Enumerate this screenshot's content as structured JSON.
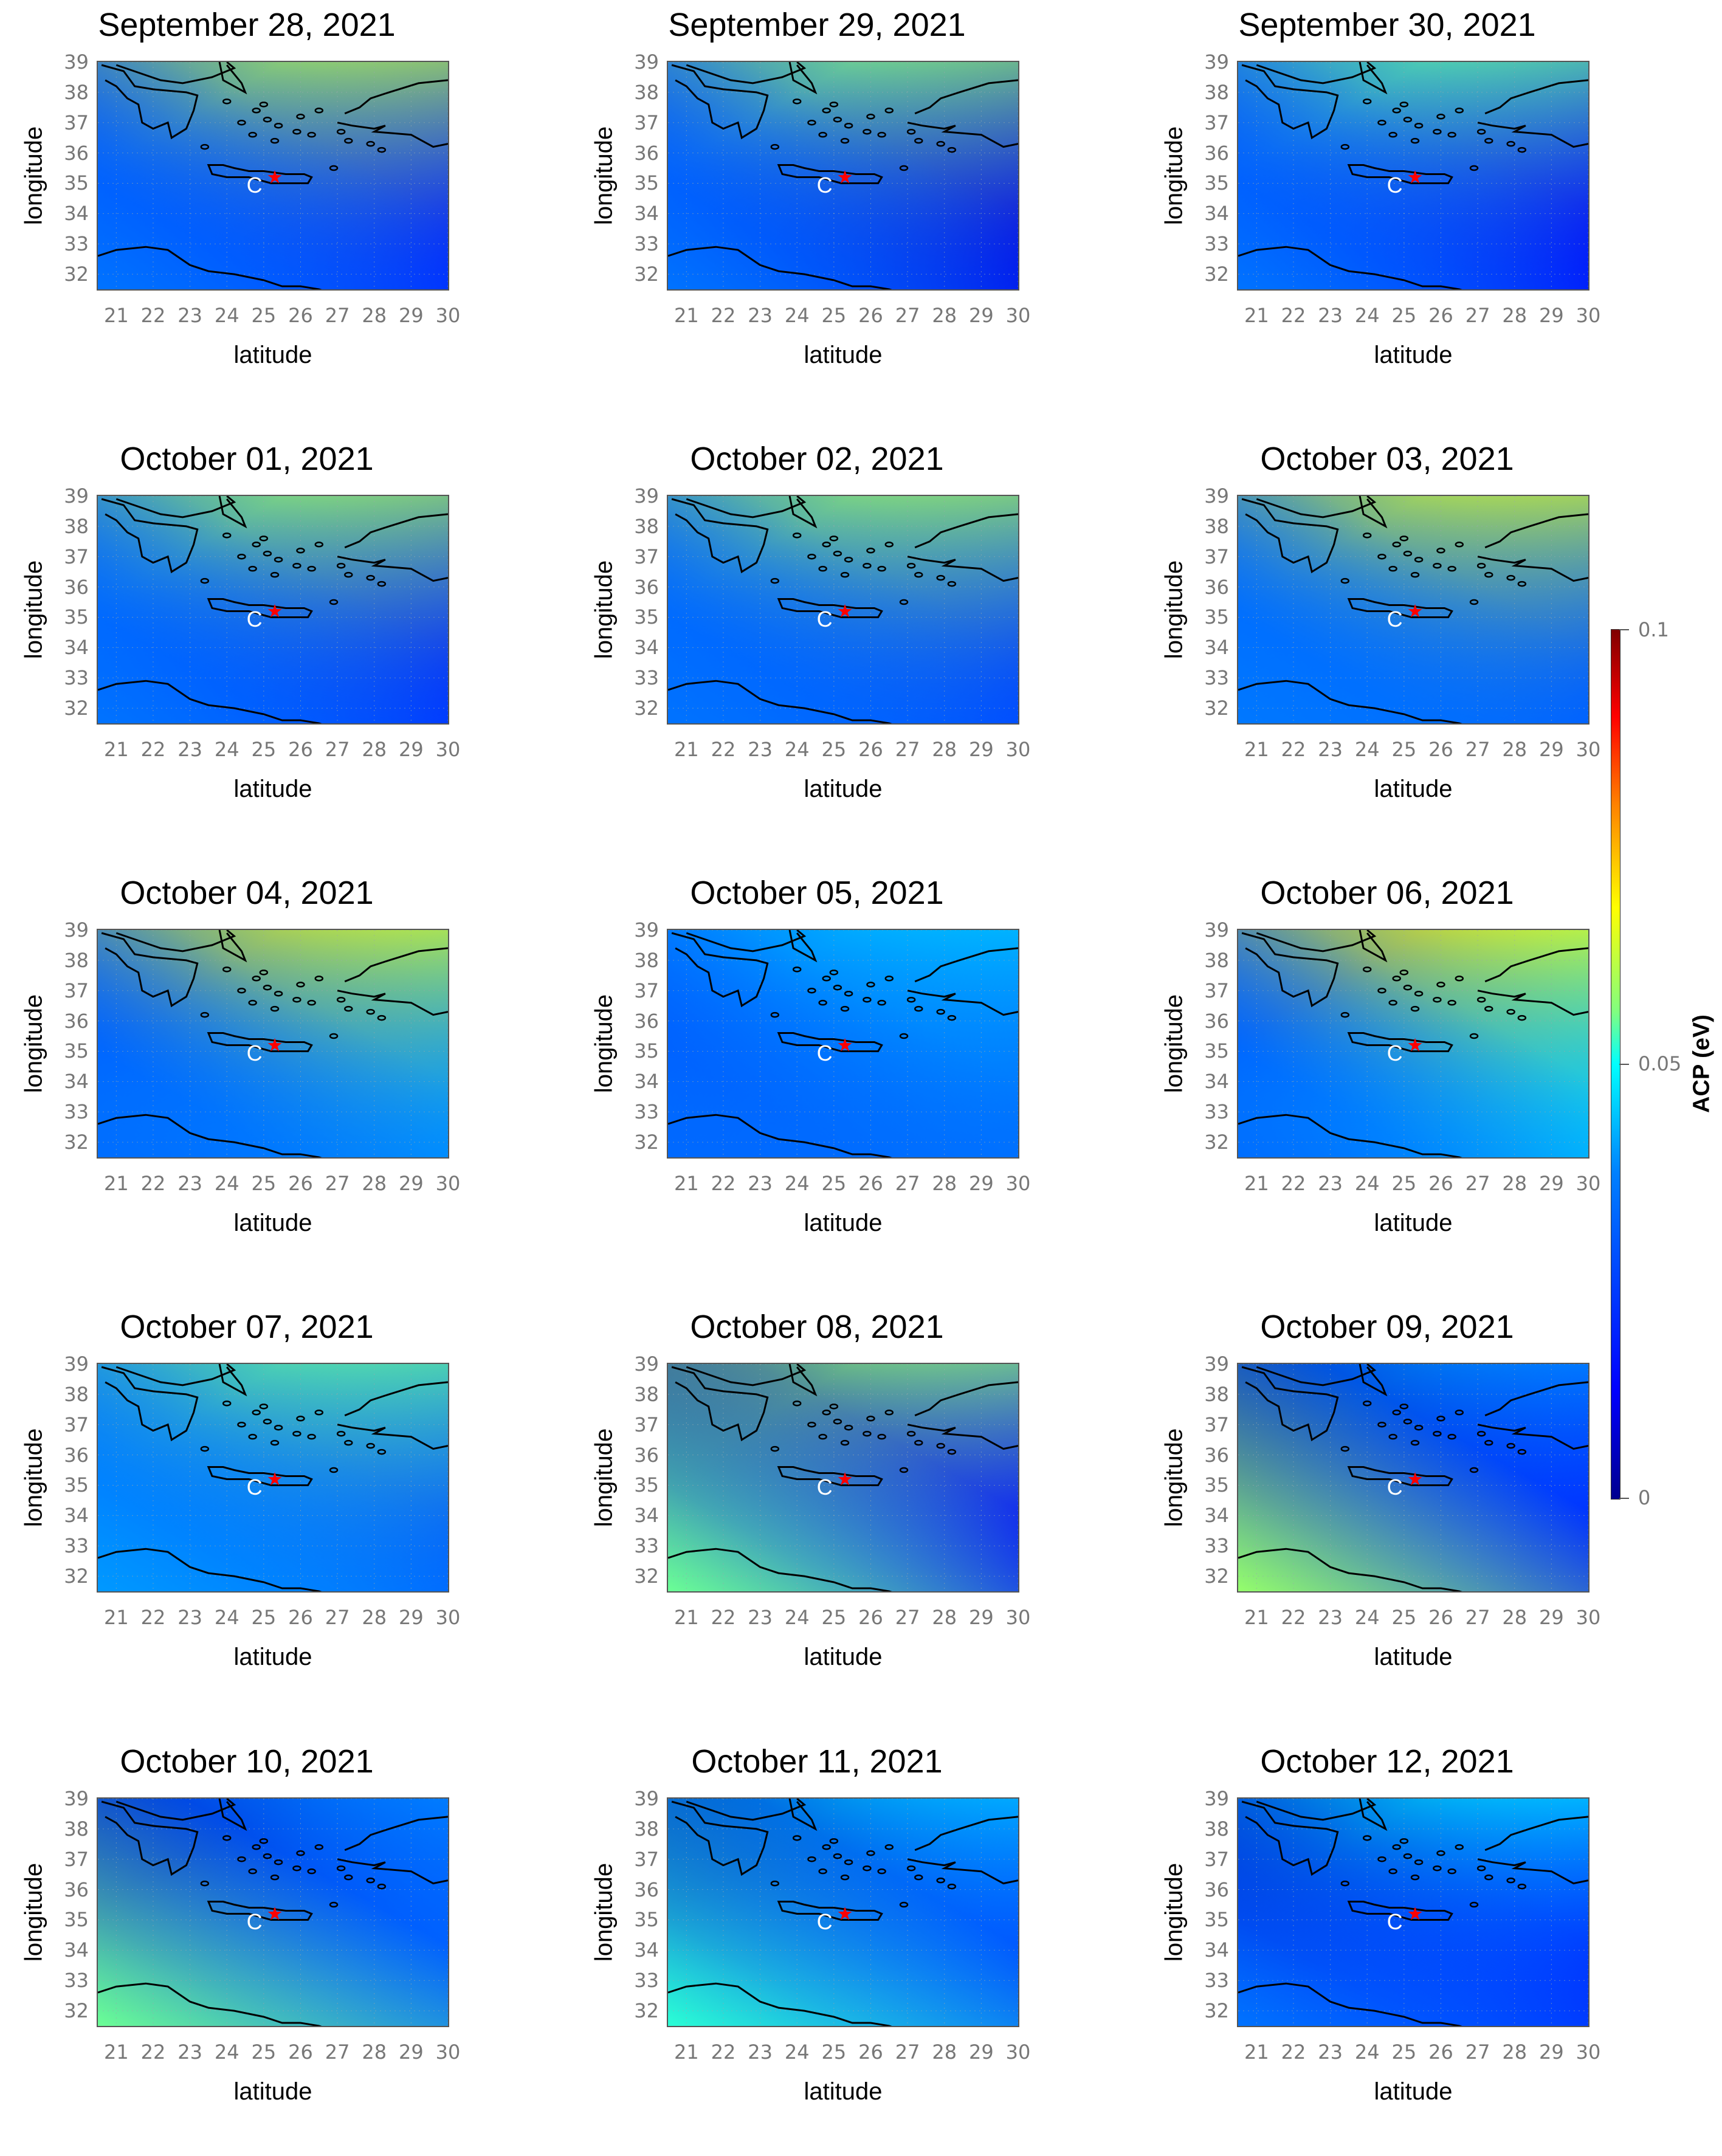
{
  "chart_data": {
    "type": "heatmap",
    "grid_layout": {
      "rows": 5,
      "cols": 3
    },
    "xlabel": "latitude",
    "ylabel": "longitude",
    "xlim": [
      20.5,
      30
    ],
    "ylim": [
      31.5,
      39
    ],
    "x_ticks": [
      "21",
      "22",
      "23",
      "24",
      "25",
      "26",
      "27",
      "28",
      "29",
      "30"
    ],
    "y_ticks": [
      "39",
      "38",
      "37",
      "36",
      "35",
      "34",
      "33",
      "32"
    ],
    "grid": true,
    "colorbar": {
      "title": "ACP (eV)",
      "range": [
        0,
        0.1
      ],
      "ticks": [
        "0.1",
        "0.05",
        "0"
      ],
      "colors": [
        "#00008f",
        "#0000ff",
        "#0080ff",
        "#00ffff",
        "#80ff80",
        "#ffff00",
        "#ff8000",
        "#ff0000",
        "#800000"
      ]
    },
    "markers": {
      "epicenter": {
        "symbol": "★",
        "color": "#ff0000",
        "x": 25.3,
        "y": 35.2
      },
      "point_c": {
        "label": "C",
        "color": "#ffffff",
        "x": 24.75,
        "y": 34.95
      }
    },
    "panels": [
      {
        "title": "September 28, 2021",
        "base": 0.03,
        "ne": 0.062,
        "nw": 0.025,
        "se": 0.018,
        "sw": 0.035
      },
      {
        "title": "September 29, 2021",
        "base": 0.03,
        "ne": 0.058,
        "nw": 0.025,
        "se": 0.01,
        "sw": 0.035
      },
      {
        "title": "September 30, 2021",
        "base": 0.03,
        "ne": 0.055,
        "nw": 0.025,
        "se": 0.012,
        "sw": 0.035
      },
      {
        "title": "October 01, 2021",
        "base": 0.032,
        "ne": 0.06,
        "nw": 0.03,
        "se": 0.02,
        "sw": 0.035
      },
      {
        "title": "October 02, 2021",
        "base": 0.033,
        "ne": 0.06,
        "nw": 0.03,
        "se": 0.025,
        "sw": 0.035
      },
      {
        "title": "October 03, 2021",
        "base": 0.034,
        "ne": 0.065,
        "nw": 0.03,
        "se": 0.03,
        "sw": 0.036
      },
      {
        "title": "October 04, 2021",
        "base": 0.033,
        "ne": 0.066,
        "nw": 0.028,
        "se": 0.04,
        "sw": 0.034
      },
      {
        "title": "October 05, 2021",
        "base": 0.032,
        "ne": 0.045,
        "nw": 0.028,
        "se": 0.035,
        "sw": 0.033
      },
      {
        "title": "October 06, 2021",
        "base": 0.034,
        "ne": 0.068,
        "nw": 0.028,
        "se": 0.045,
        "sw": 0.034
      },
      {
        "title": "October 07, 2021",
        "base": 0.033,
        "ne": 0.055,
        "nw": 0.03,
        "se": 0.03,
        "sw": 0.04
      },
      {
        "title": "October 08, 2021",
        "base": 0.022,
        "ne": 0.058,
        "nw": 0.005,
        "se": 0.015,
        "sw": 0.055
      },
      {
        "title": "October 09, 2021",
        "base": 0.02,
        "ne": 0.04,
        "nw": 0.004,
        "se": 0.02,
        "sw": 0.058
      },
      {
        "title": "October 10, 2021",
        "base": 0.02,
        "ne": 0.038,
        "nw": 0.005,
        "se": 0.032,
        "sw": 0.055
      },
      {
        "title": "October 11, 2021",
        "base": 0.018,
        "ne": 0.045,
        "nw": 0.004,
        "se": 0.028,
        "sw": 0.052
      },
      {
        "title": "October 12, 2021",
        "base": 0.018,
        "ne": 0.048,
        "nw": 0.005,
        "se": 0.02,
        "sw": 0.035
      }
    ]
  }
}
